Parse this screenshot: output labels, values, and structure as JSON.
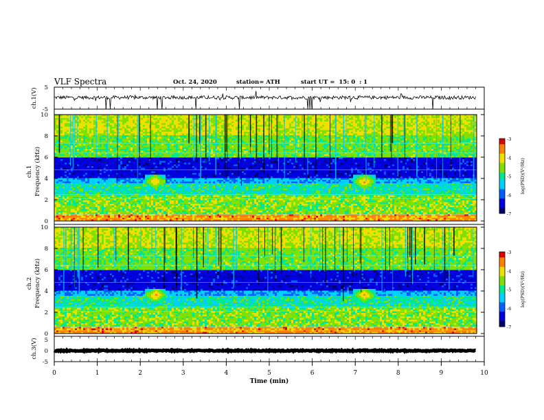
{
  "header": {
    "title": "VLF Spectra",
    "date": "Oct. 24, 2020",
    "station": "station= ATH",
    "start": "start UT =  15: 0  : 1"
  },
  "colors": {
    "colormap": [
      "#000066",
      "#0000dd",
      "#0060ff",
      "#00d0ff",
      "#00e890",
      "#80e000",
      "#f0e000",
      "#ff8000",
      "#e00000"
    ],
    "trace": "#000000",
    "frame": "#000000"
  },
  "chart_data": [
    {
      "type": "line",
      "panel": "ch1-time-series",
      "ylabel": "ch.1(V)",
      "xlim": [
        0,
        10
      ],
      "ylim": [
        -5,
        5
      ],
      "yticks": [
        "5",
        "-5"
      ],
      "description_values": {
        "mean_volts": 0.3,
        "noise_amplitude_volts": 0.8,
        "spike_times_min": [
          1.2,
          1.3,
          2.4,
          2.5,
          3.3,
          4.3,
          5.9,
          5.95,
          6.0,
          8.8
        ]
      }
    },
    {
      "type": "heatmap",
      "panel": "ch1-spectrogram",
      "ylabel": "ch.1\nFrequency (kHz)",
      "xlim": [
        0,
        10
      ],
      "ylim": [
        0,
        10
      ],
      "yticks": [
        "0",
        "2",
        "4",
        "6",
        "8",
        "10"
      ],
      "colorbar": {
        "label": "log(PSD)(V²/Hz)",
        "range": [
          -7,
          -3
        ],
        "ticks": [
          "-3",
          "-4",
          "-5",
          "-6",
          "-7"
        ]
      },
      "features": {
        "quiet_band_khz": [
          4,
          6
        ],
        "active_band_khz": [
          6,
          10
        ],
        "lf_band_khz": [
          0,
          3.5
        ],
        "hotspots_min": [
          2.35,
          7.2
        ],
        "hotspot_freq_khz": 3.7
      }
    },
    {
      "type": "heatmap",
      "panel": "ch2-spectrogram",
      "ylabel": "ch.2\nFrequency (kHz)",
      "xlim": [
        0,
        10
      ],
      "ylim": [
        0,
        10
      ],
      "yticks": [
        "0",
        "2",
        "4",
        "6",
        "8",
        "10"
      ],
      "colorbar": {
        "label": "log(PSD)(V²/Hz)",
        "range": [
          -7,
          -3
        ],
        "ticks": [
          "-3",
          "-4",
          "-5",
          "-6",
          "-7"
        ]
      },
      "features": {
        "quiet_band_khz": [
          4,
          6
        ],
        "active_band_khz": [
          6,
          10
        ],
        "lf_band_khz": [
          0,
          3.5
        ],
        "hotspots_min": [
          2.35,
          7.2
        ],
        "hotspot_freq_khz": 3.6
      }
    },
    {
      "type": "line",
      "panel": "ch3-time-series",
      "ylabel": "ch.3(V)",
      "xlim": [
        0,
        10
      ],
      "ylim": [
        -5,
        5
      ],
      "yticks": [
        "5",
        "0",
        "-5"
      ],
      "description_values": {
        "mean_volts": 0.0,
        "noise_amplitude_volts": 0.25
      }
    }
  ],
  "xaxis": {
    "label": "Time (min)",
    "ticks": [
      "0",
      "1",
      "2",
      "3",
      "4",
      "5",
      "6",
      "7",
      "8",
      "9",
      "10"
    ]
  }
}
